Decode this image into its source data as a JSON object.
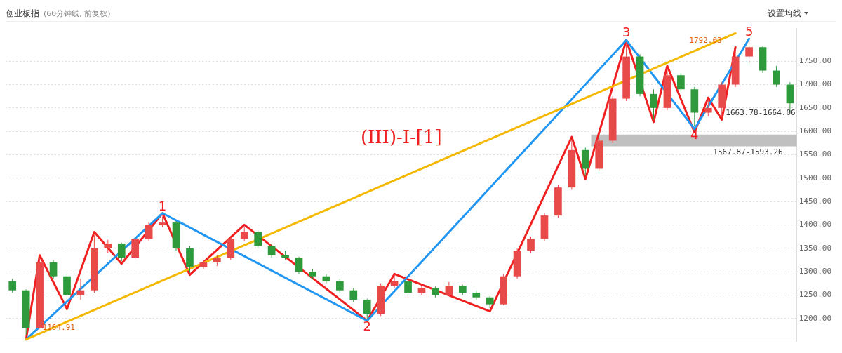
{
  "chart_data": {
    "type": "candlestick",
    "title": "创业板指",
    "subtitle": "(60分钟线, 前复权)",
    "categories": [
      null,
      null,
      null,
      null,
      null,
      null,
      null,
      null,
      null,
      null,
      null,
      null,
      null,
      null,
      null,
      null,
      null,
      null,
      null,
      null,
      null,
      null,
      null,
      null,
      null,
      null,
      null,
      null,
      null,
      null,
      null,
      null,
      null,
      null,
      null,
      null,
      null,
      null,
      null,
      null,
      null,
      null,
      null,
      null,
      null,
      null,
      null,
      null,
      null,
      null,
      null,
      null,
      null,
      null,
      null,
      null,
      null,
      null
    ],
    "ohlc": [
      [
        1280,
        1285,
        1255,
        1260
      ],
      [
        1260,
        1262,
        1164.91,
        1180
      ],
      [
        1180,
        1330,
        1178,
        1320
      ],
      [
        1320,
        1325,
        1285,
        1290
      ],
      [
        1290,
        1295,
        1225,
        1250
      ],
      [
        1250,
        1285,
        1240,
        1260
      ],
      [
        1260,
        1378,
        1255,
        1350
      ],
      [
        1350,
        1368,
        1340,
        1360
      ],
      [
        1360,
        1362,
        1322,
        1330
      ],
      [
        1330,
        1375,
        1328,
        1370
      ],
      [
        1370,
        1405,
        1365,
        1400
      ],
      [
        1400,
        1418,
        1395,
        1405
      ],
      [
        1405,
        1408,
        1345,
        1350
      ],
      [
        1350,
        1355,
        1298,
        1310
      ],
      [
        1310,
        1325,
        1305,
        1320
      ],
      [
        1320,
        1335,
        1312,
        1330
      ],
      [
        1330,
        1375,
        1325,
        1370
      ],
      [
        1370,
        1395,
        1365,
        1385
      ],
      [
        1385,
        1388,
        1350,
        1355
      ],
      [
        1355,
        1360,
        1330,
        1335
      ],
      [
        1335,
        1345,
        1325,
        1330
      ],
      [
        1330,
        1332,
        1295,
        1300
      ],
      [
        1300,
        1305,
        1285,
        1290
      ],
      [
        1290,
        1295,
        1275,
        1280
      ],
      [
        1280,
        1285,
        1255,
        1260
      ],
      [
        1260,
        1265,
        1235,
        1240
      ],
      [
        1240,
        1242,
        1200,
        1210
      ],
      [
        1210,
        1275,
        1205,
        1270
      ],
      [
        1270,
        1295,
        1265,
        1280
      ],
      [
        1280,
        1283,
        1250,
        1255
      ],
      [
        1255,
        1270,
        1250,
        1265
      ],
      [
        1265,
        1268,
        1245,
        1250
      ],
      [
        1250,
        1278,
        1248,
        1270
      ],
      [
        1270,
        1272,
        1250,
        1255
      ],
      [
        1255,
        1260,
        1240,
        1245
      ],
      [
        1245,
        1248,
        1222,
        1230
      ],
      [
        1230,
        1295,
        1228,
        1290
      ],
      [
        1290,
        1350,
        1285,
        1345
      ],
      [
        1345,
        1375,
        1340,
        1370
      ],
      [
        1370,
        1425,
        1365,
        1420
      ],
      [
        1420,
        1485,
        1415,
        1480
      ],
      [
        1480,
        1582,
        1475,
        1560
      ],
      [
        1560,
        1565,
        1505,
        1520
      ],
      [
        1520,
        1585,
        1515,
        1580
      ],
      [
        1580,
        1675,
        1575,
        1670
      ],
      [
        1670,
        1790,
        1665,
        1760
      ],
      [
        1760,
        1765,
        1675,
        1680
      ],
      [
        1680,
        1690,
        1625,
        1650
      ],
      [
        1650,
        1735,
        1645,
        1720
      ],
      [
        1720,
        1725,
        1685,
        1690
      ],
      [
        1690,
        1695,
        1610,
        1640
      ],
      [
        1640,
        1668,
        1632,
        1650
      ],
      [
        1650,
        1705,
        1630,
        1700
      ],
      [
        1700,
        1775,
        1695,
        1760
      ],
      [
        1760,
        1792.03,
        1745,
        1780
      ],
      [
        1780,
        1782,
        1725,
        1730
      ],
      [
        1730,
        1740,
        1695,
        1700
      ],
      [
        1700,
        1705,
        1640,
        1660
      ]
    ],
    "series": [
      {
        "type": "line",
        "color": "#f5b800",
        "values": [
          null,
          1155,
          null,
          null,
          null,
          null,
          null,
          null,
          null,
          null,
          null,
          null,
          null,
          null,
          null,
          null,
          null,
          null,
          null,
          null,
          null,
          null,
          null,
          null,
          null,
          null,
          null,
          null,
          null,
          null,
          null,
          null,
          null,
          null,
          null,
          null,
          null,
          null,
          null,
          null,
          null,
          null,
          null,
          null,
          null,
          null,
          null,
          null,
          null,
          null,
          null,
          null,
          null,
          1810,
          null,
          null,
          null,
          null
        ]
      },
      {
        "type": "line",
        "color": "#2196f3",
        "values": [
          null,
          1155,
          null,
          null,
          null,
          null,
          null,
          null,
          null,
          null,
          null,
          1425,
          null,
          null,
          null,
          null,
          null,
          null,
          null,
          null,
          null,
          null,
          null,
          null,
          null,
          null,
          1195,
          null,
          null,
          null,
          null,
          null,
          null,
          null,
          null,
          null,
          null,
          null,
          null,
          null,
          null,
          null,
          null,
          null,
          null,
          1795,
          null,
          null,
          null,
          null,
          1605,
          null,
          null,
          null,
          1798,
          null,
          null,
          null
        ]
      },
      {
        "type": "line",
        "color": "#f02020",
        "values": [
          null,
          1155,
          1335,
          null,
          1220,
          null,
          1385,
          null,
          1317,
          null,
          null,
          1425,
          null,
          1293,
          null,
          null,
          null,
          1400,
          null,
          null,
          null,
          null,
          null,
          null,
          null,
          null,
          1195,
          null,
          1295,
          null,
          null,
          null,
          null,
          null,
          null,
          1215,
          null,
          null,
          null,
          null,
          null,
          1588,
          1498,
          null,
          null,
          1795,
          null,
          1620,
          1740,
          null,
          1598,
          1672,
          1625,
          1780,
          null,
          null,
          null,
          null
        ]
      }
    ],
    "ylim": [
      1150,
      1820
    ],
    "yticks": [
      {
        "value": 1200,
        "label": "1200.00"
      },
      {
        "value": 1250,
        "label": "1250.00"
      },
      {
        "value": 1300,
        "label": "1300.00"
      },
      {
        "value": 1350,
        "label": "1350.00"
      },
      {
        "value": 1400,
        "label": "1400.00"
      },
      {
        "value": 1450,
        "label": "1450.00"
      },
      {
        "value": 1500,
        "label": "1500.00"
      },
      {
        "value": 1550,
        "label": "1550.00"
      },
      {
        "value": 1600,
        "label": "1600.00"
      },
      {
        "value": 1650,
        "label": "1650.00"
      },
      {
        "value": 1700,
        "label": "1700.00"
      },
      {
        "value": 1750,
        "label": "1750.00"
      }
    ],
    "bands": [
      {
        "axis": "y",
        "from": 1567.87,
        "to": 1593.26,
        "label": "1567.87-1593.26",
        "color": "#c0c0c0"
      }
    ],
    "annotations": [
      "设置均线",
      "1663.78-1664.06",
      "(III)-I-[1]",
      "1164.91",
      "1792.03",
      {
        "text": "1",
        "y": 1418
      },
      {
        "text": "2",
        "y": 1200
      },
      {
        "text": "3",
        "y": 1790
      },
      {
        "text": "4",
        "y": 1610
      },
      {
        "text": "5",
        "y": 1792.03
      }
    ],
    "grid": "y",
    "legend": false,
    "tick_labels": "y"
  }
}
